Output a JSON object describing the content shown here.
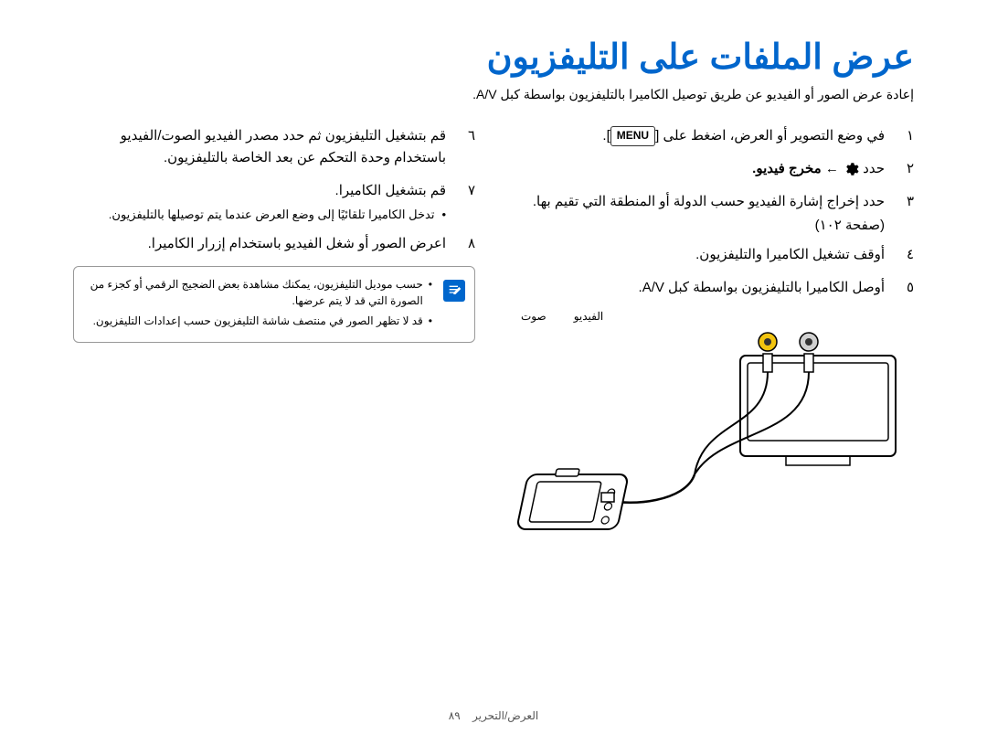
{
  "title": "عرض الملفات على التليفزيون",
  "subtitle": "إعادة عرض الصور أو الفيديو عن طريق توصيل الكاميرا بالتليفزيون بواسطة كبل A/V.",
  "right_steps": [
    {
      "num": "١",
      "text_before": "في وضع التصوير أو العرض، اضغط على ",
      "menu": "MENU",
      "text_after": "."
    },
    {
      "num": "٢",
      "text_before": "حدد ",
      "icon": "gear",
      "text_after_icon": " ← مخرج فيديو."
    },
    {
      "num": "٣",
      "text": "حدد إخراج إشارة الفيديو حسب الدولة أو المنطقة التي تقيم بها."
    },
    {
      "num": "",
      "subline": "(صفحة ١٠٢)"
    },
    {
      "num": "٤",
      "text": "أوقف تشغيل الكاميرا والتليفزيون."
    },
    {
      "num": "٥",
      "text": "أوصل الكاميرا بالتليفزيون بواسطة كبل A/V."
    }
  ],
  "left_steps": [
    {
      "num": "٦",
      "text": "قم بتشغيل التليفزيون ثم حدد مصدر الفيديو الصوت/الفيديو باستخدام وحدة التحكم عن بعد الخاصة بالتليفزيون."
    },
    {
      "num": "٧",
      "text": "قم بتشغيل الكاميرا."
    },
    {
      "num": "",
      "bullet": "تدخل الكاميرا تلقائيًا إلى وضع العرض عندما يتم توصيلها بالتليفزيون."
    },
    {
      "num": "٨",
      "text": "اعرض الصور أو شغل الفيديو باستخدام إزرار الكاميرا."
    }
  ],
  "note": {
    "lines": [
      "حسب موديل التليفزيون، يمكنك مشاهدة بعض الضجيج الرقمي أو كجزء من الصورة التي قد لا يتم عرضها.",
      "قد لا تظهر الصور في منتصف شاشة التليفزيون حسب إعدادات التليفزيون."
    ]
  },
  "av_labels": {
    "video": "الفيديو",
    "audio": "صوت"
  },
  "footer": {
    "section": "العرض/التحرير",
    "page": "٨٩"
  },
  "colors": {
    "title": "#0066cc",
    "note_icon_bg": "#0066cc",
    "video_jack": "#f2c40f",
    "audio_jack": "#d0d0d0"
  }
}
